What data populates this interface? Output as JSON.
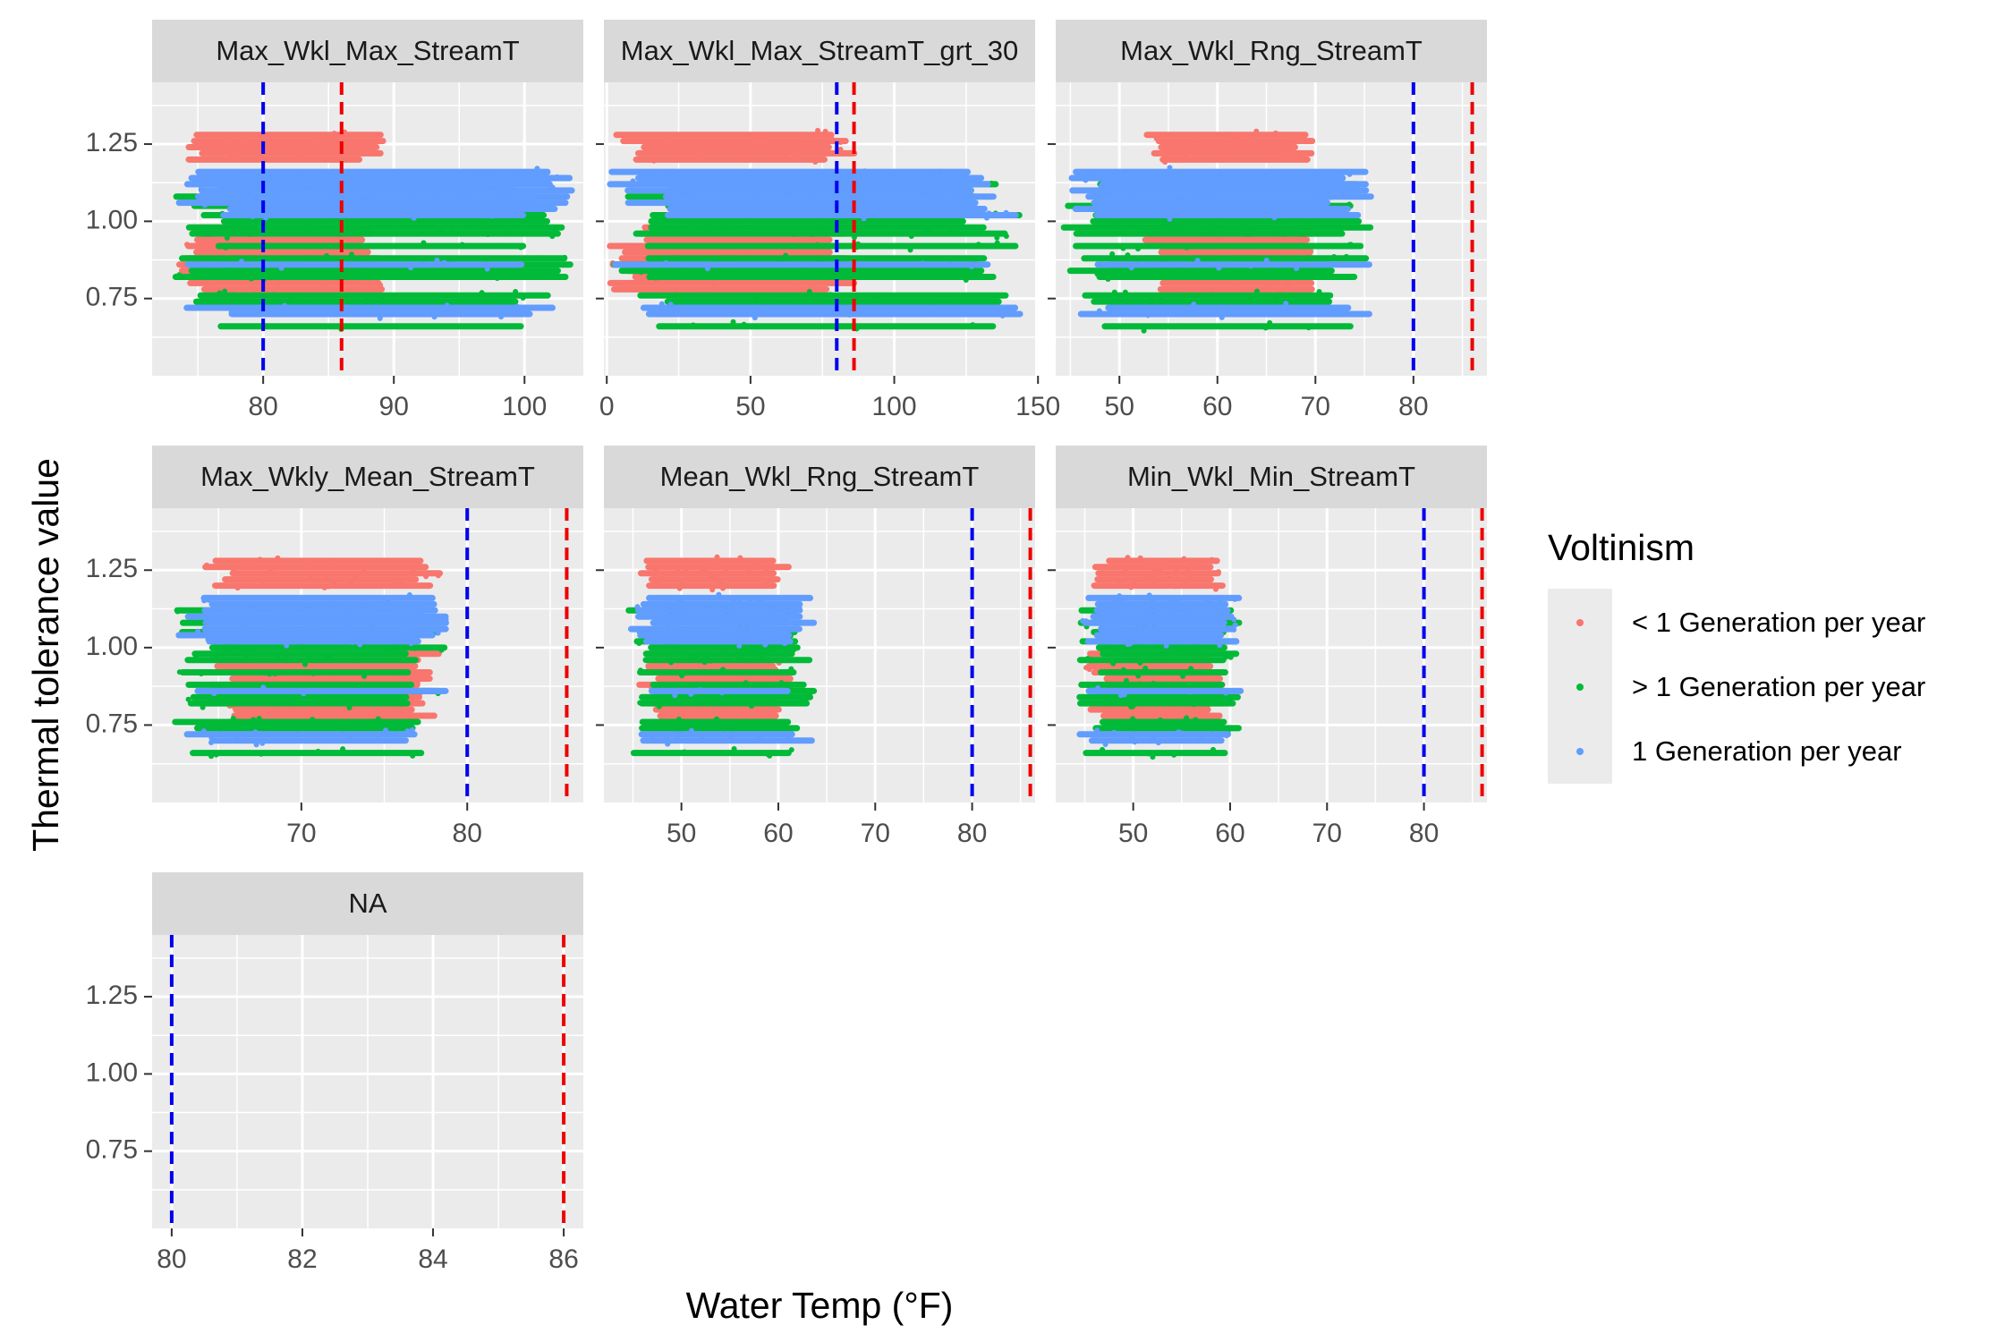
{
  "chart_data": {
    "type": "scatter",
    "xlabel": "Water Temp (°F)",
    "ylabel": "Thermal tolerance value",
    "reference_lines": [
      {
        "x": 80,
        "color": "#0000ee",
        "style": "dashed"
      },
      {
        "x": 86,
        "color": "#ee0000",
        "style": "dashed"
      }
    ],
    "legend": {
      "title": "Voltinism",
      "placement": "right",
      "entries": [
        {
          "label": "< 1 Generation per year",
          "color": "#F8766D"
        },
        {
          "label": "> 1 Generation per year",
          "color": "#00BA38"
        },
        {
          "label": "1 Generation per year",
          "color": "#619CFF"
        }
      ]
    },
    "y_ticks": [
      "1.25",
      "1.00",
      "0.75"
    ],
    "y_range": [
      0.5,
      1.45
    ],
    "series_levels": {
      "lt1": [
        1.28,
        1.26,
        1.24,
        1.22,
        1.2,
        0.98,
        0.96,
        0.94,
        0.92,
        0.9,
        0.88,
        0.86,
        0.84,
        0.82,
        0.8,
        0.78
      ],
      "gt1": [
        1.12,
        1.08,
        1.05,
        1.02,
        1.0,
        0.98,
        0.96,
        0.92,
        0.88,
        0.86,
        0.84,
        0.82,
        0.76,
        0.74,
        0.66
      ],
      "one": [
        1.16,
        1.14,
        1.12,
        1.1,
        1.08,
        1.06,
        1.04,
        1.02,
        0.86,
        0.72,
        0.7
      ]
    },
    "panels": [
      {
        "strip": "Max_Wkl_Max_StreamT",
        "xlim": [
          71.5,
          104.5
        ],
        "x_ticks": [
          {
            "v": 80,
            "label": "80"
          },
          {
            "v": 90,
            "label": "90"
          },
          {
            "v": 100,
            "label": "100"
          }
        ],
        "data_x_range": {
          "lt1": [
            73,
            90
          ],
          "gt1": [
            73,
            104
          ],
          "one": [
            73,
            104
          ]
        }
      },
      {
        "strip": "Max_Wkl_Max_StreamT_grt_30",
        "xlim": [
          -1,
          149
        ],
        "x_ticks": [
          {
            "v": 0,
            "label": "0"
          },
          {
            "v": 50,
            "label": "50"
          },
          {
            "v": 100,
            "label": "100"
          },
          {
            "v": 150,
            "label": "150"
          }
        ],
        "data_x_range": {
          "lt1": [
            0,
            88
          ],
          "gt1": [
            0,
            145
          ],
          "one": [
            0,
            145
          ]
        }
      },
      {
        "strip": "Max_Wkl_Rng_StreamT",
        "xlim": [
          43.5,
          87.5
        ],
        "x_ticks": [
          {
            "v": 50,
            "label": "50"
          },
          {
            "v": 60,
            "label": "60"
          },
          {
            "v": 70,
            "label": "70"
          },
          {
            "v": 80,
            "label": "80"
          }
        ],
        "data_x_range": {
          "lt1": [
            52,
            70
          ],
          "gt1": [
            44,
            76
          ],
          "one": [
            44,
            76
          ]
        }
      },
      {
        "strip": "Max_Wkly_Mean_StreamT",
        "xlim": [
          61,
          87
        ],
        "x_ticks": [
          {
            "v": 70,
            "label": "70"
          },
          {
            "v": 80,
            "label": "80"
          }
        ],
        "data_x_range": {
          "lt1": [
            64,
            79
          ],
          "gt1": [
            62,
            79
          ],
          "one": [
            62,
            79
          ]
        }
      },
      {
        "strip": "Mean_Wkl_Rng_StreamT",
        "xlim": [
          42,
          86.5
        ],
        "x_ticks": [
          {
            "v": 50,
            "label": "50"
          },
          {
            "v": 60,
            "label": "60"
          },
          {
            "v": 70,
            "label": "70"
          },
          {
            "v": 80,
            "label": "80"
          }
        ],
        "data_x_range": {
          "lt1": [
            45,
            62
          ],
          "gt1": [
            44,
            64
          ],
          "one": [
            44,
            64
          ]
        }
      },
      {
        "strip": "Min_Wkl_Min_StreamT",
        "xlim": [
          42,
          86.5
        ],
        "x_ticks": [
          {
            "v": 50,
            "label": "50"
          },
          {
            "v": 60,
            "label": "60"
          },
          {
            "v": 70,
            "label": "70"
          },
          {
            "v": 80,
            "label": "80"
          }
        ],
        "data_x_range": {
          "lt1": [
            45,
            60
          ],
          "gt1": [
            44,
            62
          ],
          "one": [
            44,
            62
          ]
        }
      },
      {
        "strip": "NA",
        "xlim": [
          79.7,
          86.3
        ],
        "x_ticks": [
          {
            "v": 80,
            "label": "80"
          },
          {
            "v": 82,
            "label": "82"
          },
          {
            "v": 84,
            "label": "84"
          },
          {
            "v": 86,
            "label": "86"
          }
        ],
        "data_x_range": null
      }
    ]
  }
}
